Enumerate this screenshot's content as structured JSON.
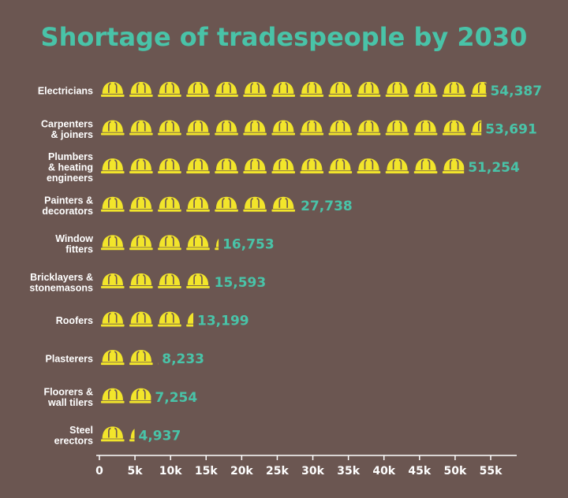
{
  "chart_data": {
    "type": "bar",
    "title": "Shortage of tradespeople by 2030",
    "categories": [
      [
        "Electricians"
      ],
      [
        "Carpenters",
        "& joiners"
      ],
      [
        "Plumbers",
        "& heating",
        "engineers"
      ],
      [
        "Painters &",
        "decorators"
      ],
      [
        "Window",
        "fitters"
      ],
      [
        "Bricklayers &",
        "stonemasons"
      ],
      [
        "Roofers"
      ],
      [
        "Plasterers"
      ],
      [
        "Floorers &",
        "wall tilers"
      ],
      [
        "Steel",
        "erectors"
      ]
    ],
    "values": [
      54387,
      53691,
      51254,
      27738,
      16753,
      15593,
      13199,
      8233,
      7254,
      4937
    ],
    "value_labels": [
      "54,387",
      "53,691",
      "51,254",
      "27,738",
      "16,753",
      "15,593",
      "13,199",
      "8,233",
      "7,254",
      "4,937"
    ],
    "xlim": [
      0,
      55000
    ],
    "xticks": [
      0,
      5000,
      10000,
      15000,
      20000,
      25000,
      30000,
      35000,
      40000,
      45000,
      50000,
      55000
    ],
    "xtick_labels": [
      "0",
      "5k",
      "10k",
      "15k",
      "20k",
      "25k",
      "30k",
      "35k",
      "40k",
      "45k",
      "50k",
      "55k"
    ],
    "icon_unit": 4000,
    "icon": "hard-hat-icon",
    "grid": false,
    "colors": {
      "background": "#6b5651",
      "icon": "#f2e52b",
      "accent": "#49c3a8",
      "text": "#ffffff"
    }
  }
}
